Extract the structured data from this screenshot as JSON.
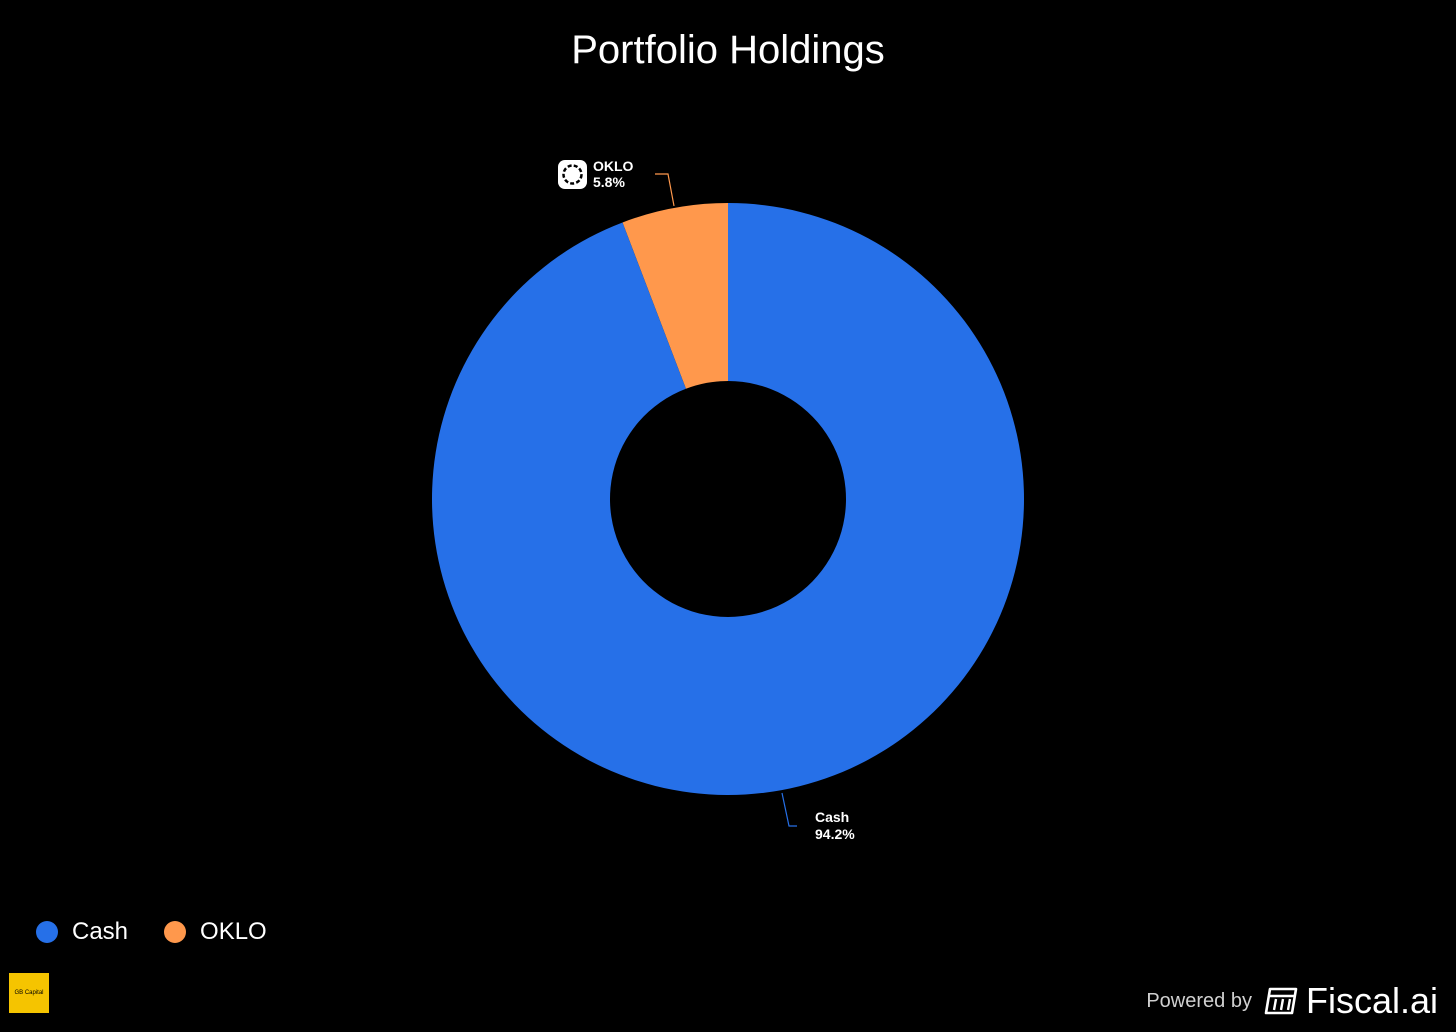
{
  "chart_data": {
    "type": "pie",
    "donut": true,
    "title": "Portfolio Holdings",
    "slices": [
      {
        "name": "OKLO",
        "value": 5.8,
        "label": "5.8%",
        "color": "#FF984C"
      },
      {
        "name": "Cash",
        "value": 94.2,
        "label": "94.2%",
        "color": "#2670E8"
      }
    ],
    "legend": {
      "placement": "bottom-left",
      "items": [
        {
          "name": "Cash",
          "color": "#2670E8"
        },
        {
          "name": "OKLO",
          "color": "#FF984C"
        }
      ]
    }
  },
  "branding": {
    "logo_text": "GB Capital",
    "powered_by": "Powered by",
    "provider": "Fiscal.ai"
  },
  "colors": {
    "background": "#000000",
    "logo_background": "#F5C400"
  }
}
